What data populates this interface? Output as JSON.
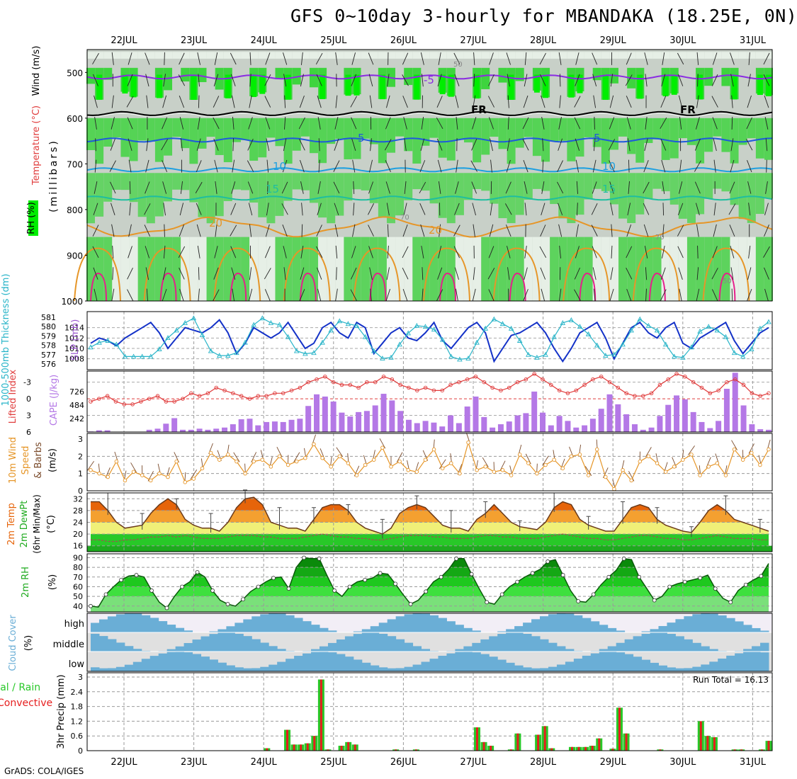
{
  "title": "GFS 0~10day 3-hourly for MBANDAKA (18.25E, 0N)",
  "credit": "GrADS: COLA/IGES",
  "dates": [
    "22JUL",
    "23JUL",
    "24JUL",
    "25JUL",
    "26JUL",
    "27JUL",
    "28JUL",
    "29JUL",
    "30JUL",
    "31JUL"
  ],
  "colors": {
    "rh_green": "#2fd42f",
    "rh_bright": "#00ee00",
    "rh_grey": "#c8d0c8",
    "rh_white": "#e6efe6",
    "isotherm_purple": "#8a2be2",
    "isotherm_blue": "#1e5adc",
    "isotherm_lightblue": "#1ea0e0",
    "isotherm_teal": "#1ebea0",
    "isotherm_orange": "#e69628",
    "isotherm_red": "#e61e8c",
    "slp": "#1432c8",
    "thickness": "#28b4c8",
    "lifted_index": "#e03c3c",
    "cape": "#b478e6",
    "wind10m": "#e69628",
    "cloud": "#6aaed6",
    "precip_total": "#28c828",
    "precip_conv": "#e61e1e",
    "temp_dark": "#e6640a",
    "temp_orange": "#f4a030",
    "temp_yellow": "#f0f078",
    "dewpt_green": "#28c828"
  },
  "chart_data": [
    {
      "type": "heatmap",
      "panel": "upper-air",
      "ylabel": "(millibars)",
      "legend_labels": [
        "Wind (m/s)",
        "Temperature (°C)",
        "RH (%)"
      ],
      "yticks": [
        500,
        600,
        700,
        800,
        900,
        1000
      ],
      "ylim": [
        450,
        1000
      ],
      "isotherm_labels": [
        "-5",
        "FR",
        "FR",
        "5",
        "5",
        "10",
        "10",
        "15",
        "15",
        "20",
        "20",
        "50",
        "70",
        "70",
        "50"
      ],
      "isotherms": [
        {
          "label": "-5",
          "color": "isotherm_purple",
          "p": 510
        },
        {
          "label": "FR",
          "color": "#000000",
          "p": 590
        },
        {
          "label": "5",
          "color": "isotherm_blue",
          "p": 648
        },
        {
          "label": "10",
          "color": "isotherm_lightblue",
          "p": 713
        },
        {
          "label": "15",
          "color": "isotherm_teal",
          "p": 775
        },
        {
          "label": "20",
          "color": "isotherm_orange",
          "p": 838
        }
      ]
    },
    {
      "type": "line",
      "panel": "slp-thickness",
      "ylabel_left": "1000-500mb Thickness (dm)",
      "ylabel_right": "SLP (mb)",
      "thickness_ticks": [
        576,
        577,
        578,
        579,
        580,
        581
      ],
      "slp_ticks": [
        1008,
        1010,
        1012,
        1014
      ],
      "series": [
        {
          "name": "SLP",
          "color": "slp",
          "values": [
            1011,
            1012,
            1011.5,
            1010.5,
            1012,
            1013,
            1014,
            1015,
            1013,
            1010,
            1012,
            1014,
            1013.5,
            1013,
            1014,
            1015.5,
            1013,
            1009,
            1011,
            1014,
            1013,
            1012,
            1013,
            1015,
            1012.5,
            1010,
            1011,
            1014,
            1015,
            1013,
            1012,
            1015,
            1014,
            1009,
            1011,
            1013,
            1014,
            1012,
            1011.5,
            1013,
            1015,
            1011.5,
            1010,
            1012,
            1014,
            1015,
            1013,
            1007.5,
            1010,
            1012.5,
            1013,
            1014,
            1015,
            1013,
            1010,
            1007.5,
            1010,
            1013,
            1014,
            1015,
            1012,
            1008,
            1011,
            1014,
            1015,
            1013,
            1012,
            1014,
            1015,
            1011,
            1010,
            1012,
            1013,
            1014,
            1015,
            1011.5,
            1009,
            1011,
            1013,
            1014
          ]
        },
        {
          "name": "Thickness",
          "color": "thickness",
          "values": [
            577.8,
            578.3,
            578.5,
            578.1,
            576.8,
            576.8,
            576.8,
            576.8,
            577.6,
            578.8,
            579.6,
            580.4,
            580.9,
            579.1,
            577.4,
            576.9,
            576.9,
            577.2,
            578.3,
            580.2,
            580.9,
            580.4,
            580.2,
            578.9,
            577.4,
            577.1,
            577.2,
            578.3,
            579.6,
            580.6,
            580.3,
            580.1,
            578.9,
            577.4,
            576.6,
            576.7,
            578.1,
            579.3,
            580.1,
            580.0,
            579.7,
            578.6,
            576.8,
            576.5,
            576.6,
            578.3,
            579.8,
            580.8,
            580.3,
            579.8,
            578.5,
            577.0,
            576.7,
            577.0,
            578.9,
            580.4,
            580.7,
            580.0,
            579.2,
            578.0,
            576.9,
            577.0,
            578.1,
            579.6,
            580.8,
            580.1,
            579.6,
            578.1,
            576.8,
            576.7,
            577.8,
            579.5,
            580.0,
            579.6,
            578.9,
            577.2,
            576.8,
            577.6,
            579.8,
            580.5
          ]
        }
      ]
    },
    {
      "type": "bar",
      "panel": "cape-lifted-index",
      "ylabel_left": "Lifted Index",
      "ylabel_right": "CAPE (J/kg)",
      "li_ticks": [
        "-3",
        "0",
        "3",
        "6"
      ],
      "cape_ticks": [
        242,
        484,
        726
      ],
      "series": [
        {
          "name": "CAPE",
          "color": "cape",
          "values": [
            10,
            30,
            30,
            0,
            0,
            0,
            0,
            40,
            60,
            150,
            250,
            40,
            40,
            60,
            40,
            60,
            80,
            140,
            230,
            240,
            120,
            180,
            190,
            180,
            220,
            240,
            470,
            680,
            640,
            550,
            350,
            280,
            360,
            380,
            480,
            690,
            570,
            380,
            220,
            160,
            200,
            170,
            100,
            300,
            160,
            460,
            640,
            270,
            80,
            140,
            190,
            300,
            340,
            730,
            350,
            120,
            290,
            200,
            80,
            120,
            240,
            420,
            680,
            500,
            320,
            140,
            40,
            80,
            290,
            490,
            660,
            590,
            360,
            180,
            70,
            200,
            780,
            1070,
            480,
            140,
            50,
            40
          ]
        },
        {
          "name": "Lifted Index",
          "color": "lifted_index",
          "values": [
            0.5,
            0,
            -0.5,
            0.5,
            1,
            1,
            0.5,
            0,
            -0.5,
            0.5,
            0.5,
            0,
            -1,
            -0.5,
            -1,
            -2,
            -1.5,
            -1,
            -0.5,
            0,
            -0.5,
            -0.5,
            -1,
            -1,
            -1.5,
            -2,
            -3,
            -3.5,
            -4,
            -3,
            -2.5,
            -2.5,
            -2,
            -3,
            -3,
            -4,
            -3.5,
            -2.5,
            -2,
            -1.5,
            -2,
            -1.5,
            -1.5,
            -2.5,
            -3,
            -3.5,
            -4,
            -3,
            -2,
            -1.5,
            -2,
            -3,
            -3.5,
            -4.5,
            -3.5,
            -2.5,
            -1.5,
            -1,
            -1.5,
            -2.5,
            -3.5,
            -4,
            -3,
            -2,
            -1,
            -0.5,
            -0.5,
            -1,
            -2.5,
            -3.5,
            -4.5,
            -4,
            -3,
            -2,
            -1,
            -1.5,
            -3,
            -3.5,
            -2.5,
            -1,
            -0.5,
            -1
          ]
        }
      ],
      "ylim_li": [
        6,
        -5
      ],
      "ylim_cape": [
        0,
        1100
      ]
    },
    {
      "type": "line",
      "panel": "wind10m",
      "ylabel": "10m Wind Speed & Barbs (m/s)",
      "yticks": [
        0,
        1,
        2,
        3
      ],
      "ylim": [
        0,
        3
      ],
      "series": [
        {
          "name": "10m Wind Speed",
          "color": "wind10m",
          "values": [
            1.2,
            1.0,
            0.8,
            1.7,
            0.6,
            1.1,
            0.9,
            0.6,
            1.0,
            0.8,
            1.7,
            0.5,
            0.7,
            1.3,
            2.2,
            1.8,
            2.1,
            1.7,
            1.0,
            1.7,
            1.8,
            1.4,
            2.0,
            1.5,
            1.7,
            1.9,
            2.7,
            1.9,
            1.4,
            2.0,
            1.6,
            0.9,
            1.5,
            1.8,
            2.5,
            1.4,
            1.7,
            1.2,
            1.1,
            1.8,
            2.4,
            1.3,
            1.6,
            1.0,
            2.8,
            1.2,
            1.4,
            1.1,
            1.2,
            0.9,
            2.1,
            1.6,
            1.0,
            1.5,
            1.8,
            1.3,
            2.0,
            2.1,
            0.9,
            2.4,
            0.8,
            0.1,
            1.2,
            0.6,
            1.7,
            2.0,
            1.6,
            1.1,
            1.4,
            1.8,
            2.1,
            0.9,
            1.4,
            1.6,
            0.9,
            2.4,
            1.8,
            2.2,
            1.5,
            2.4
          ]
        }
      ]
    },
    {
      "type": "area",
      "panel": "temperature",
      "ylabel": "2m Temp 2m DewPt (6hr Min/Max) (°C)",
      "yticks": [
        16,
        20,
        24,
        28,
        32
      ],
      "ylim": [
        14,
        34
      ],
      "series": [
        {
          "name": "2m Temp",
          "color": "temp_dark",
          "values": [
            31,
            31,
            28,
            24,
            22,
            22.5,
            23,
            27,
            30,
            32,
            30,
            25,
            23,
            22,
            22,
            21,
            24,
            29,
            32,
            32.5,
            30,
            24,
            23,
            22,
            22,
            21,
            25,
            29,
            30,
            30,
            28,
            24,
            22,
            21,
            20,
            22,
            27,
            29,
            30,
            29,
            26,
            23,
            22,
            22,
            21,
            25,
            27,
            30,
            27,
            24,
            22.5,
            22,
            21.5,
            24,
            29,
            31,
            30,
            25,
            23,
            22,
            21,
            21,
            25,
            29,
            30,
            29,
            25,
            23,
            22,
            21,
            20.5,
            24,
            28,
            30,
            28,
            25,
            24,
            23,
            22,
            21
          ]
        },
        {
          "name": "2m DewPt",
          "color": "dewpt_green",
          "values": [
            18,
            18,
            17.5,
            17.5,
            18,
            18,
            18.5,
            19,
            19,
            19.5,
            19,
            19.5,
            19,
            18.5,
            18.5,
            18.5,
            19,
            19.5,
            19.5,
            19.5,
            19,
            19,
            18.5,
            18.5,
            18.5,
            19,
            19.5,
            20,
            19.5,
            19,
            19,
            18.5,
            18.5,
            18,
            18,
            18.5,
            19,
            19.5,
            19.5,
            19.5,
            19,
            19,
            18.5,
            18.5,
            18.5,
            19,
            19.5,
            19.5,
            19,
            19,
            18.5,
            18.5,
            18.5,
            19,
            19.5,
            20,
            19.5,
            19,
            18.5,
            18.5,
            18,
            18,
            18.5,
            19,
            19.5,
            19.5,
            19,
            18.5,
            18.5,
            18,
            18,
            18.5,
            19,
            19.5,
            19,
            18.5,
            18.5,
            18.5,
            18,
            18
          ]
        }
      ]
    },
    {
      "type": "area",
      "panel": "rh2m",
      "ylabel": "2m RH (%)",
      "yticks": [
        40,
        50,
        60,
        70,
        80,
        90
      ],
      "ylim": [
        34,
        94
      ],
      "series": [
        {
          "name": "2m RH",
          "color": "rh_green",
          "values": [
            40,
            39,
            52,
            60,
            67,
            71,
            72,
            70,
            56,
            44,
            38,
            50,
            60,
            65,
            75,
            70,
            56,
            46,
            42,
            40,
            47,
            55,
            60,
            65,
            69,
            70,
            58,
            80,
            90,
            89,
            89,
            72,
            56,
            50,
            60,
            65,
            67,
            69,
            74,
            73,
            63,
            52,
            42,
            46,
            55,
            65,
            70,
            78,
            89,
            89,
            73,
            58,
            44,
            42,
            52,
            60,
            65,
            70,
            74,
            78,
            86,
            88,
            72,
            56,
            45,
            44,
            52,
            62,
            70,
            77,
            89,
            88,
            70,
            58,
            46,
            50,
            60,
            63,
            65,
            67,
            69,
            72,
            58,
            48,
            44,
            56,
            62,
            67,
            71,
            84
          ]
        }
      ]
    },
    {
      "type": "heatmap",
      "panel": "cloud-cover",
      "ylabel": "Cloud Cover (%)",
      "row_labels": [
        "high",
        "middle",
        "low"
      ]
    },
    {
      "type": "bar",
      "panel": "precip",
      "ylabel": "3hr Precip (mm)",
      "legend_labels": [
        "Total / Rain",
        "Convective"
      ],
      "run_total_label": "Run Total = 16.13",
      "yticks": [
        0,
        0.6,
        1.2,
        1.8,
        2.4,
        3
      ],
      "ylim": [
        0,
        3
      ],
      "series": [
        {
          "name": "Total",
          "color": "precip_total",
          "values": [
            0,
            0,
            0,
            0,
            0,
            0,
            0,
            0,
            0,
            0,
            0,
            0,
            0,
            0,
            0,
            0,
            0,
            0,
            0,
            0,
            0,
            0,
            0,
            0,
            0,
            0,
            0.1,
            0,
            0,
            0.85,
            0.25,
            0.25,
            0.3,
            0.6,
            2.9,
            0.05,
            0,
            0.2,
            0.35,
            0.25,
            0,
            0,
            0,
            0,
            0,
            0.05,
            0,
            0,
            0.05,
            0,
            0,
            0,
            0,
            0,
            0,
            0,
            0,
            0.95,
            0.35,
            0.2,
            0,
            0,
            0.05,
            0.7,
            0,
            0,
            0.65,
            1.0,
            0.1,
            0,
            0,
            0.15,
            0.15,
            0.15,
            0.2,
            0.5,
            0,
            0.08,
            1.75,
            0.7,
            0,
            0,
            0,
            0,
            0.05,
            0,
            0,
            0,
            0,
            0,
            1.2,
            0.6,
            0.55,
            0,
            0,
            0.05,
            0.05,
            0,
            0,
            0.05,
            0.4
          ]
        }
      ]
    }
  ]
}
